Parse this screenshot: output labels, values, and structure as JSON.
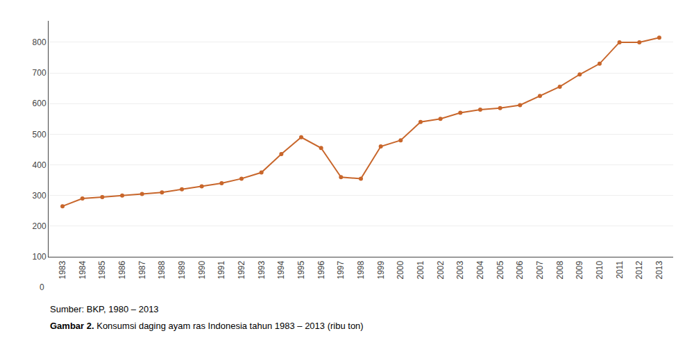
{
  "chart_data": {
    "type": "line",
    "x": [
      1983,
      1984,
      1985,
      1986,
      1987,
      1988,
      1989,
      1990,
      1991,
      1992,
      1993,
      1994,
      1995,
      1996,
      1997,
      1998,
      1999,
      2000,
      2001,
      2002,
      2003,
      2004,
      2005,
      2006,
      2007,
      2008,
      2009,
      2010,
      2011,
      2012,
      2013
    ],
    "values": [
      265,
      290,
      295,
      300,
      305,
      310,
      320,
      330,
      340,
      355,
      375,
      435,
      490,
      455,
      360,
      355,
      460,
      480,
      540,
      550,
      570,
      580,
      585,
      595,
      625,
      655,
      695,
      730,
      800,
      800,
      815
    ],
    "color": "#C8662B",
    "marker": "circle",
    "line_style": "solid",
    "xlim": [
      1982.3,
      2013.7
    ],
    "xticks": [
      1983,
      1984,
      1985,
      1986,
      1987,
      1988,
      1989,
      1990,
      1991,
      1992,
      1993,
      1994,
      1995,
      1996,
      1997,
      1998,
      1999,
      2000,
      2001,
      2002,
      2003,
      2004,
      2005,
      2006,
      2007,
      2008,
      2009,
      2010,
      2011,
      2012,
      2013
    ],
    "ylim": [
      100,
      870
    ],
    "yticks": [
      100,
      200,
      300,
      400,
      500,
      600,
      700,
      800
    ],
    "grid": "y",
    "annotations": [
      {
        "text": "0",
        "y": 0
      },
      {
        "text": "Sumber: BKP, 1980 – 2013"
      },
      {
        "text": "Gambar 2."
      },
      {
        "text": "Konsumsi daging ayam ras Indonesia tahun 1983 – 2013 (ribu ton)"
      }
    ]
  }
}
